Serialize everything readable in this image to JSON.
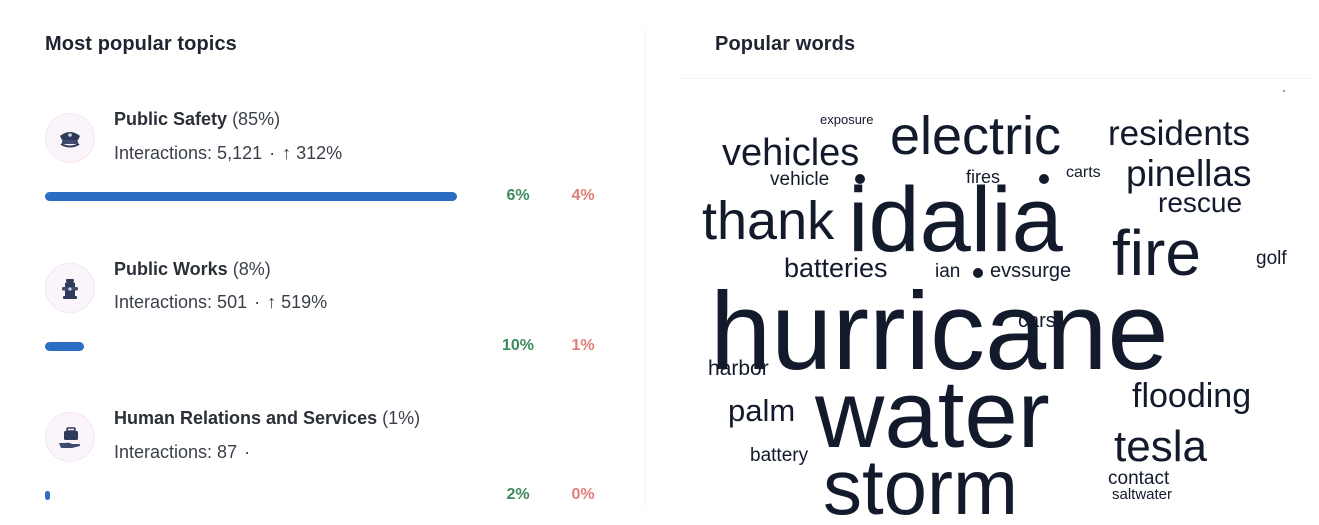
{
  "topics_panel": {
    "title": "Most popular topics",
    "topics": [
      {
        "icon": "police-cap-icon",
        "name": "Public Safety",
        "share": "(85%)",
        "interactions_label": "Interactions: 5,121",
        "dot": "·",
        "trend_arrow": "↑",
        "trend_value": "312%",
        "bar_fraction": 1.0,
        "positive_pct": "6%",
        "negative_pct": "4%"
      },
      {
        "icon": "fire-hydrant-icon",
        "name": "Public Works",
        "share": "(8%)",
        "interactions_label": "Interactions: 501",
        "dot": "·",
        "trend_arrow": "↑",
        "trend_value": "519%",
        "bar_fraction": 0.095,
        "positive_pct": "10%",
        "negative_pct": "1%"
      },
      {
        "icon": "hand-briefcase-icon",
        "name": "Human Relations and Services",
        "share": "(1%)",
        "interactions_label": "Interactions: 87",
        "dot": "·",
        "trend_arrow": "",
        "trend_value": "",
        "bar_fraction": 0.012,
        "positive_pct": "2%",
        "negative_pct": "0%"
      }
    ]
  },
  "words_panel": {
    "title": "Popular words",
    "words": [
      "hurricane",
      "water",
      "storm",
      "idalia",
      "electric",
      "fire",
      "thank",
      "vehicles",
      "residents",
      "pinellas",
      "tesla",
      "flooding",
      "rescue",
      "batteries",
      "palm",
      "evssurge",
      "cars",
      "harbor",
      "battery",
      "golf",
      "contact",
      "saltwater",
      "ian",
      "vehicle",
      "fires",
      "carts",
      "exposure"
    ]
  },
  "colors": {
    "bar": "#2b6cc4",
    "positive": "#3d8a5c",
    "negative": "#e07d78",
    "word": "#121a2b"
  }
}
